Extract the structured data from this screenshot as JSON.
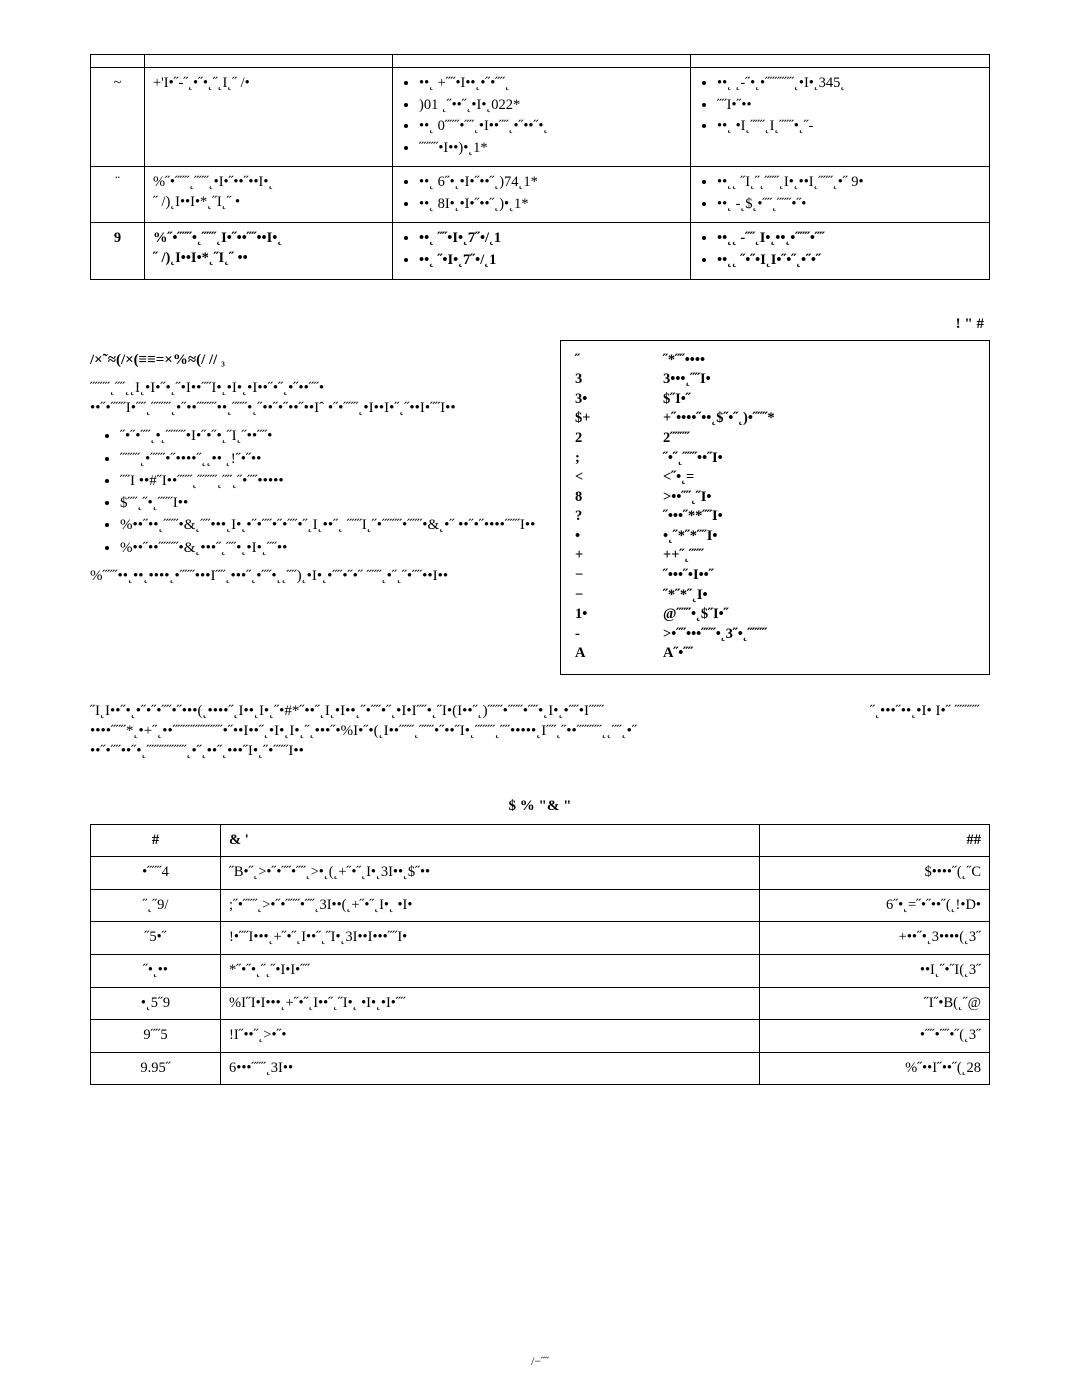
{
  "table1": {
    "header": [
      "",
      "",
      "",
      ""
    ],
    "rows": [
      {
        "n": "~",
        "desc": "+'I•˝-˝˛•˝•˛˝˛I˛˝ /•",
        "col3": [
          "••˛ +˝˝•I••˛•˝•˝˝˛",
          "    )01 ˛˝••˝˛•I•˛022*",
          "••˛ 0˝˝˝•˝˝˛•I••˝˝˛•˝••˝•˛",
          "    ˝˝˝˝•I••)•˛1*"
        ],
        "col4": [
          "••˛ ˛-˝•˛•˝˝˝˝˝˝˛•I•˛345˛",
          "    ˝˝I•˝••",
          "••˛ •I˛˝˝˝˛I˛˝˝˝•˛˝-"
        ]
      },
      {
        "n": "¨",
        "desc": "%˝•˝˝˝˛˝˝˝˛•I•˝••˝••I•˛\n˝ /)˛I••I•*˛˝I˛˝ •",
        "col3": [
          "••˛ 6˝•˛•I•˝••˝˛)74˛1*",
          "••˛ 8I•˛•I•˝••˝˛)•˛1*"
        ],
        "col4": [
          "••˛˛ ˝I˛˝˛˝˝˝˛I•˛••I˛˝˝˝˛•˝ 9•",
          "••˛ -˛$˛•˝˝˛˝˝˝•˝•"
        ]
      },
      {
        "n": "9",
        "desc": "%˝•˝˝˝•˛˝˝˝˛I•˝••˝˝••I•˛\n˝ /)˛I••I•*˛˝I˛˝ ••",
        "col3": [
          "••˛ ˝˝•I•˛7˝•/˛1",
          "••˛ ˝•I•˛7˝•/˛1"
        ],
        "col4": [
          "••˛˛ -˝˝˛I•˛••˛•˝˝˝•˝˝",
          "••˛˛ ˝•˝•I˛I•˝•˝˛•˝•˝"
        ]
      }
    ],
    "bold_rows": [
      2
    ]
  },
  "section_header": "/×˜≈(/×(≡≡=×%≈(/ //",
  "section_header_sub": "₃",
  "legend_title": "!   \"   #",
  "paragraph1": "˝˝˝˝˛˝˝˛˛I˛•I•˝•˛˝•I••˝˝I•˛•I•˛•I••˝•˝˛•˝••˝˝• ••˝•˝˝˝I•˝˝˛˝˝˝˝˛•˝••˝˝˝˝••˛˝˝˝•˛˝••˝•˝••˝••Iˆ •˝•˝˝˝˛•I••I•˝˛˝••I•˝˝I••",
  "bullets": [
    "˝•˝•˝˝˛•˛˝˝˝˝•I•˝•˝•˛˝I˛˝••˝˝•",
    "˝˝˝˝˛•˝˝˝•˝••••˝˛˛•• ˛!˝•˝••",
    "˝˝I ••#˝I••˝˝˝˛˝˝˝˝˛˝˝˛˝•˝˝•••••",
    "$˝˝˛˝•˛˝˝˝I••",
    "%••˝••˛˝˝˝•&˛˝˝•••˛I•˛•˝•˝˝•˝•˝˝•˝˛I˛••˝˛ ˝˝˝I˛˝•˝˝˝˝•˝˝˝•&˛•˝ ••˝•˝••••˝˝˝I••",
    "%••˝••˝˝˝˝•&˛•••˝˛˝˝•˛•I•˛˝˝••"
  ],
  "paragraph2": "%˝˝˝••˛••˛••••˛•˝˝˝•••I˝˝˛•••˝˛•˝˝•˛˛˝˝)˛•I•˛•˝˝•˝•˝ ˝˝˝˛•˝˛˝•˝˝••I••",
  "legend": [
    {
      "k": "˝",
      "v": "˝*˝˝••••"
    },
    {
      "k": "3",
      "v": "3•••˛˝˝I•"
    },
    {
      "k": "3•",
      "v": "$˝I•˝"
    },
    {
      "k": "$+",
      "v": "+˝••••˝••˛$˝•˝˛)•˝˝˝*"
    },
    {
      "k": "2",
      "v": "2˝˝˝˝"
    },
    {
      "k": ";",
      "v": "˝•˝˛˝˝˝••˝I•"
    },
    {
      "k": "<",
      "v": "<˝•˛="
    },
    {
      "k": "8",
      "v": ">••˝˝˛˝I•"
    },
    {
      "k": "?",
      "v": "˝•••˝**˝˝I•"
    },
    {
      "k": "•",
      "v": "•˛˝*˝*˝˝I•"
    },
    {
      "k": "+",
      "v": "++˝˛˝˝˝"
    },
    {
      "k": "−",
      "v": "˝•••˝•I••˝"
    },
    {
      "k": "−",
      "v": "˝*˝*˝˛I•"
    },
    {
      "k": "1•",
      "v": "@˝˝˝•˛$˝I•˝"
    },
    {
      "k": "-",
      "v": ">•˝˝•••˝˝˝•˛3˝•˛˝˝˝˝"
    },
    {
      "k": "A",
      "v": "A˝•˝˝"
    }
  ],
  "wide_para_left": "˝I˛I••˝•˛•˝•˝•˝˝•˝•••(˛••••˝˛I••˛I•˛˝•#*˝••˝˛I˛•I••˛˝•˝˝•˝˛•I•I˝˝•˛˝I•(I••˝˛)˝˝˝•˝˝˝•˝˝•˛I•˛•˝˝•I˝˝˝ ••••˝˝˝*˛•+˝˛••˝˝˝˝˝˝˝˝˝˝•˝••I••˝˛•I•˛I•˛˝˛•••˝•%I•˝•(˛I••˝˝˝˛˝˝˝•˝••˝I•˛˝˝˝˝˛˝˝•••••˛I˝˝˛˝••˝˝˝˝˝˛˛˝˝˛•˝ ••˝•˝˝••˝•˛˝˝˝˝˝˝˝˝˛•˝˛••˝˛•••˝I•˛˝•˝˝˝I••",
  "wide_para_right": "˝˛•••˝••˛•I• I•˝ ˝˝˝˝˝",
  "table2": {
    "title": "$   %     \"&  \"",
    "headers": [
      "#",
      "& '",
      "##"
    ],
    "rows": [
      [
        "•˝˝˝4",
        "˝B•˝˛>•˝•˝˝•˝˝˛>•˛(˛+˝•˝˛I•˛3I••˛$˝••",
        "$••••˝(˛˝C"
      ],
      [
        "˝˛˝9/",
        ";˝•˝˝˝˛>•˝•˝˝˝•˝˝˛3I••(˛+˝•˝˛I•˛ •I•",
        "6˝•˛=˝•˝••˝(˛!•D•"
      ],
      [
        "˝5•˝",
        "!•˝˝I•••˛+˝•˝˛I••˝˛˝I•˛3I••I•••˝˝I•",
        "+••˝•˛3••••(˛3˝"
      ],
      [
        "˝•˛••",
        "*˝•˝•˛˝˛˝•I•I•˝˝",
        "••I˛˝•˝I(˛3˝"
      ],
      [
        "•˛5˝9",
        "%I˝I•I•••˛+˝•˝˛I••˝˛˝I•˛ •I•˛•I•˝˝",
        "˝I˝•B(˛˝@"
      ],
      [
        "9˝˝5",
        "!I˝••˝˛>•˝•",
        "•˝˝•˝˝•˝(˛3˝"
      ],
      [
        "9.95˝",
        "6•••˝˝˝˛3I••",
        "%˝••I˝••˝(˛28"
      ]
    ]
  },
  "page_number": "/−˝˝"
}
